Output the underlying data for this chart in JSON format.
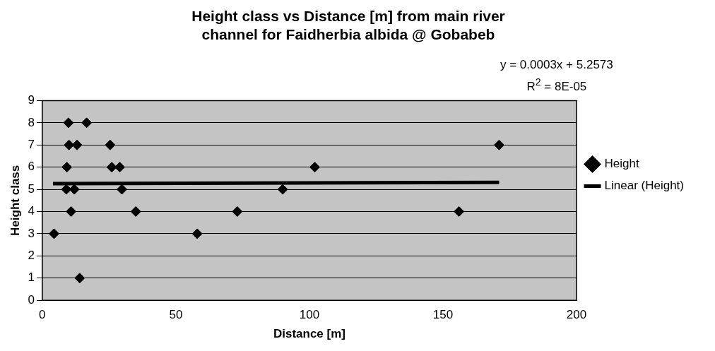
{
  "chart_data": {
    "type": "scatter",
    "title": [
      "Height class vs Distance [m] from main river",
      "channel for Faidherbia albida @ Gobabeb"
    ],
    "xlabel": "Distance [m]",
    "ylabel": "Height class",
    "xlim": [
      0,
      200
    ],
    "xticks": [
      0,
      50,
      100,
      150,
      200
    ],
    "ylim": [
      0,
      9
    ],
    "yticks": [
      0,
      1,
      2,
      3,
      4,
      5,
      6,
      7,
      8,
      9
    ],
    "grid": "y",
    "legend": "right",
    "marker": "diamond",
    "annotations": [
      "y = 0.0003x + 5.2573",
      "R$^{2}$ = 8E-05"
    ],
    "series": [
      {
        "name": "Height",
        "color": "#000000",
        "x": [
          9.8,
          16.6,
          10,
          13,
          25.4,
          171,
          9.2,
          26,
          29,
          102,
          9,
          12,
          29.8,
          90,
          10.8,
          35,
          73,
          156,
          4.4,
          58,
          14
        ],
        "values": [
          8,
          8,
          7,
          7,
          7,
          7,
          6,
          6,
          6,
          6,
          5,
          5,
          5,
          5,
          4,
          4,
          4,
          4,
          3,
          3,
          1
        ]
      },
      {
        "name": "Linear (Height)",
        "type": "line",
        "marker": "none",
        "color": "#000000",
        "x": [
          4,
          171
        ],
        "values": [
          5.26,
          5.31
        ]
      }
    ]
  }
}
